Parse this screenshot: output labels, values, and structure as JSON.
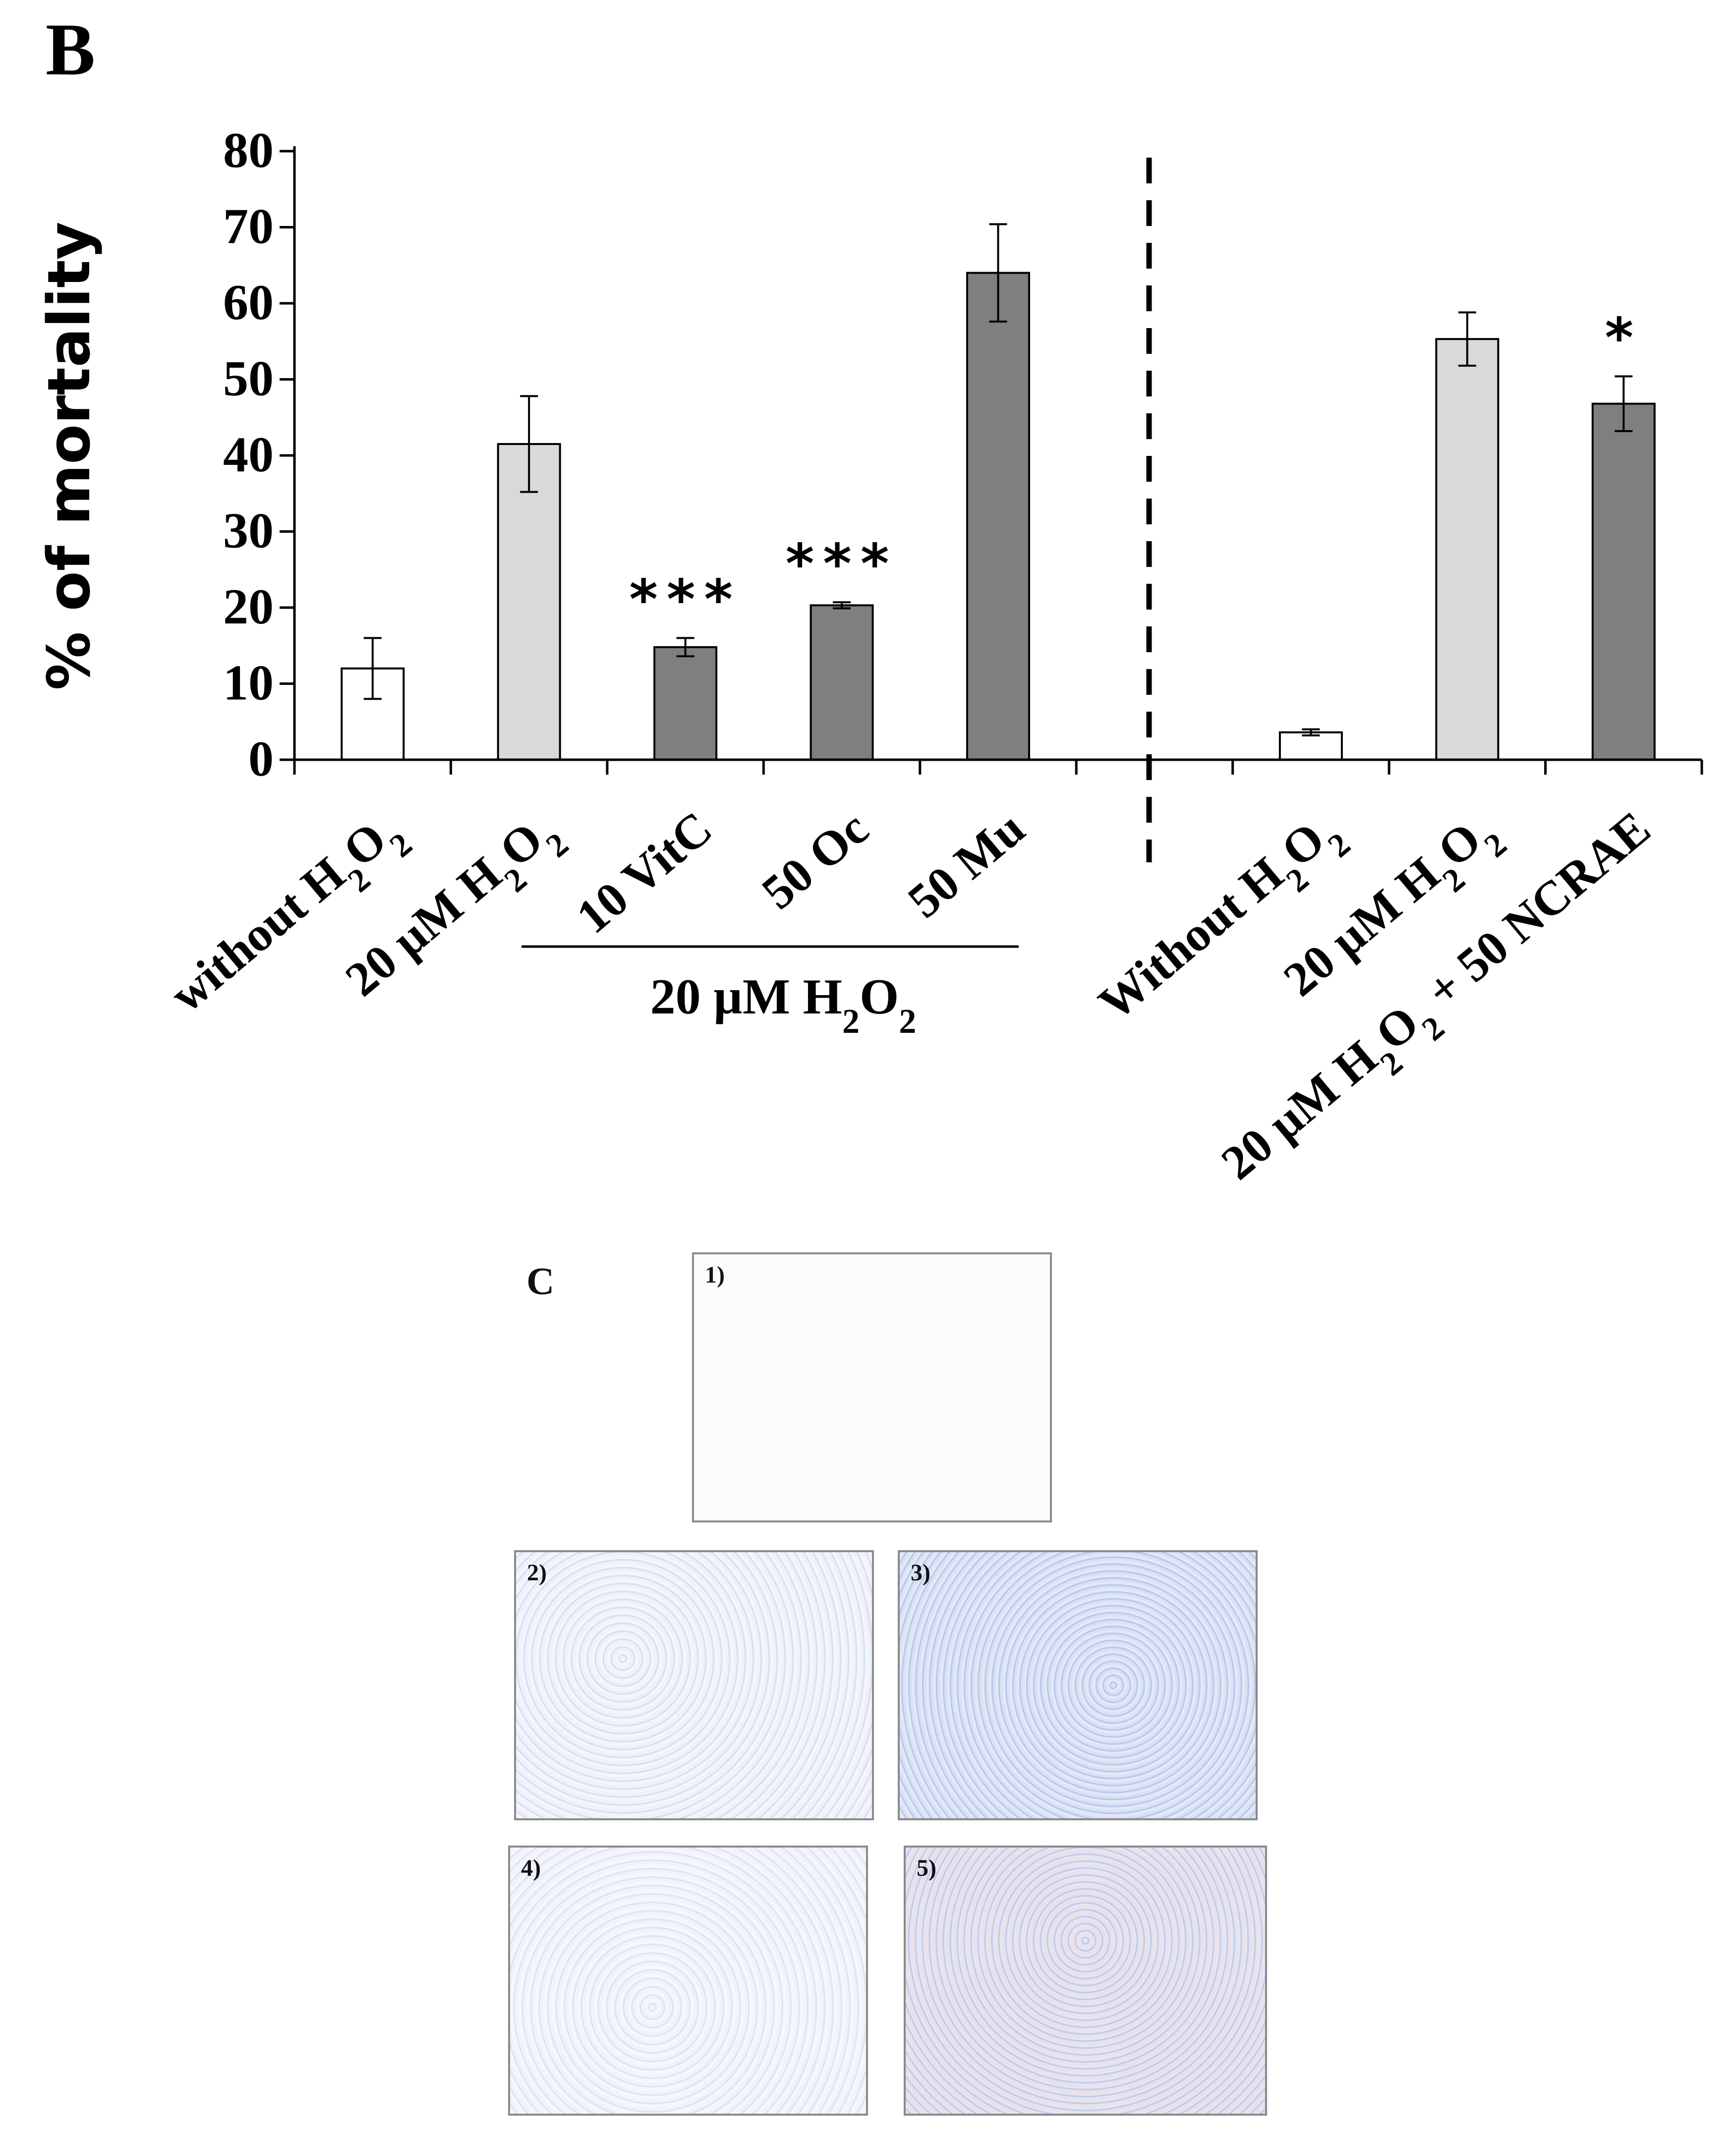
{
  "panel_b_label": "B",
  "panel_c_label": "C",
  "chart_data": {
    "type": "bar",
    "ylabel": "% of mortality",
    "ylim": [
      0,
      80
    ],
    "yticks": [
      0,
      10,
      20,
      30,
      40,
      50,
      60,
      70,
      80
    ],
    "categories": [
      {
        "pre": "without  H",
        "s1": "2",
        "mid": "O",
        "s2": "2",
        "post": ""
      },
      {
        "pre": "20 µM H",
        "s1": "2",
        "mid": "O",
        "s2": "2",
        "post": ""
      },
      {
        "pre": "10 VitC",
        "s1": "",
        "mid": "",
        "s2": "",
        "post": ""
      },
      {
        "pre": "50 Oc",
        "s1": "",
        "mid": "",
        "s2": "",
        "post": ""
      },
      {
        "pre": "50 Mu",
        "s1": "",
        "mid": "",
        "s2": "",
        "post": ""
      },
      {
        "pre": "Without H",
        "s1": "2",
        "mid": "O",
        "s2": "2",
        "post": ""
      },
      {
        "pre": "20 µM H",
        "s1": "2",
        "mid": "O",
        "s2": "2",
        "post": ""
      },
      {
        "pre": "20 µM H",
        "s1": "2",
        "mid": "O",
        "s2": "2",
        "post": " + 50 NCRAE"
      }
    ],
    "values": [
      12,
      41.5,
      14.8,
      20.3,
      64,
      3.6,
      55.3,
      46.8
    ],
    "errors": [
      4,
      6.3,
      1.2,
      0.4,
      6.4,
      0.4,
      3.5,
      3.6
    ],
    "bar_colors": [
      "#ffffff",
      "#d9d9d9",
      "#7f7f7f",
      "#7f7f7f",
      "#7f7f7f",
      "#ffffff",
      "#d9d9d9",
      "#7f7f7f"
    ],
    "annotations": [
      "",
      "",
      "***",
      "***",
      "",
      "",
      "",
      "*"
    ],
    "group_label": {
      "pre": "20 µM H",
      "s1": "2",
      "mid": "O",
      "s2": "2"
    }
  },
  "micrographs": [
    {
      "label": "1)"
    },
    {
      "label": "2)"
    },
    {
      "label": "3)"
    },
    {
      "label": "4)"
    },
    {
      "label": "5)"
    }
  ]
}
